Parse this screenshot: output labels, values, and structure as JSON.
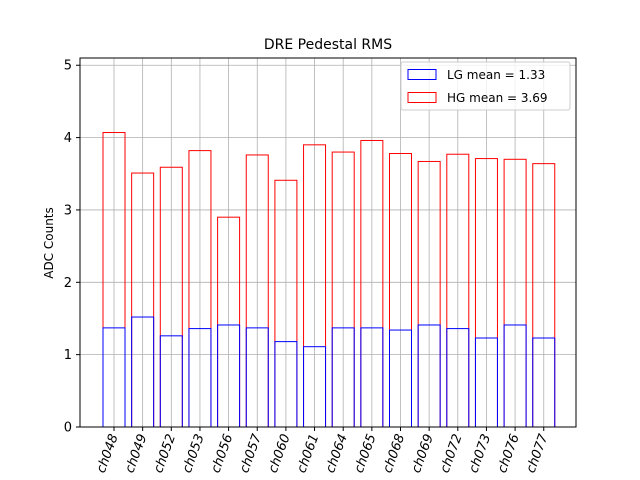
{
  "chart_data": {
    "type": "bar",
    "title": "DRE Pedestal RMS",
    "xlabel": "",
    "ylabel": "ADC Counts",
    "ylim": [
      0,
      5.1
    ],
    "yticks": [
      "0",
      "1",
      "2",
      "3",
      "4",
      "5"
    ],
    "grid": true,
    "legend_position": "top-right",
    "categories": [
      "ch048",
      "ch049",
      "ch052",
      "ch053",
      "ch056",
      "ch057",
      "ch060",
      "ch061",
      "ch064",
      "ch065",
      "ch068",
      "ch069",
      "ch072",
      "ch073",
      "ch076",
      "ch077"
    ],
    "series": [
      {
        "name": "LG",
        "legend_label": "LG mean = 1.33",
        "color": "#0000ff",
        "values": [
          1.37,
          1.52,
          1.26,
          1.36,
          1.41,
          1.37,
          1.18,
          1.11,
          1.37,
          1.37,
          1.34,
          1.41,
          1.36,
          1.23,
          1.41,
          1.23
        ]
      },
      {
        "name": "HG",
        "legend_label": "HG mean = 3.69",
        "color": "#ff0000",
        "values": [
          4.07,
          3.51,
          3.59,
          3.82,
          2.9,
          3.76,
          3.41,
          3.9,
          3.8,
          3.96,
          3.78,
          3.67,
          3.77,
          3.71,
          3.7,
          3.64
        ]
      }
    ]
  }
}
